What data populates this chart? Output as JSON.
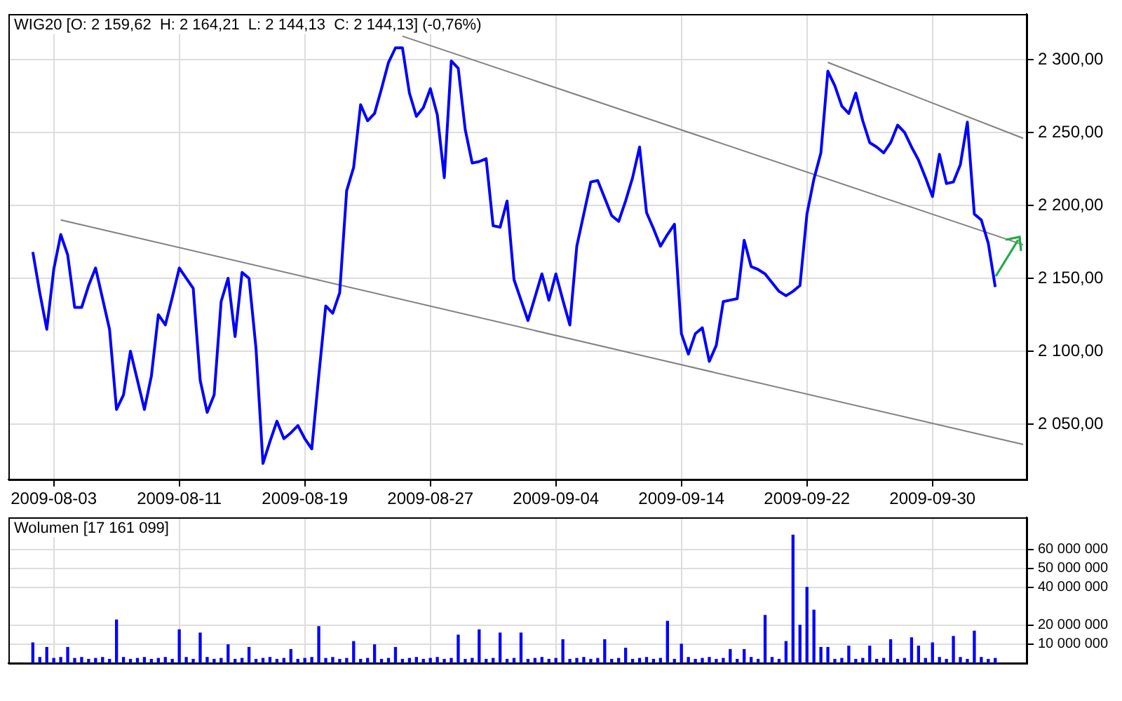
{
  "chart_data": [
    {
      "type": "line",
      "title": "WIG20 [O: 2 159,62  H: 2 164,21  L: 2 144,13  C: 2 144,13] (-0,76%)",
      "categories": [
        null,
        null,
        null,
        null,
        null,
        null,
        "2009-08-03",
        null,
        null,
        null,
        null,
        null,
        null,
        null,
        null,
        null,
        null,
        null,
        null,
        null,
        null,
        null,
        null,
        null,
        "2009-08-11",
        null,
        null,
        null,
        null,
        null,
        null,
        null,
        null,
        null,
        null,
        null,
        null,
        null,
        null,
        null,
        null,
        null,
        "2009-08-19",
        null,
        null,
        null,
        null,
        null,
        null,
        null,
        null,
        null,
        null,
        null,
        null,
        null,
        null,
        null,
        null,
        null,
        "2009-08-27",
        null,
        null,
        null,
        null,
        null,
        null,
        null,
        null,
        null,
        null,
        null,
        null,
        null,
        null,
        null,
        null,
        null,
        "2009-09-04",
        null,
        null,
        null,
        null,
        null,
        null,
        null,
        null,
        null,
        null,
        null,
        null,
        null,
        null,
        null,
        null,
        null,
        "2009-09-14",
        null,
        null,
        null,
        null,
        null,
        null,
        null,
        null,
        null,
        null,
        null,
        null,
        null,
        null,
        null,
        null,
        null,
        "2009-09-22",
        null,
        null,
        null,
        null,
        null,
        null,
        null,
        null,
        null,
        null,
        null,
        null,
        null,
        null,
        null,
        null,
        null,
        "2009-09-30",
        null,
        null,
        null,
        null,
        null,
        null,
        null,
        null,
        null,
        null,
        null,
        null,
        null
      ],
      "ylim": [
        2012,
        2331
      ],
      "yticks": [
        {
          "value": 2050,
          "label": "2 050,00"
        },
        {
          "value": 2100,
          "label": "2 100,00"
        },
        {
          "value": 2150,
          "label": "2 150,00"
        },
        {
          "value": 2200,
          "label": "2 200,00"
        },
        {
          "value": 2250,
          "label": "2 250,00"
        },
        {
          "value": 2300,
          "label": "2 300,00"
        }
      ],
      "grid": true,
      "series": [
        {
          "color": "#0000ff",
          "values": [
            null,
            null,
            null,
            2168,
            2140,
            2115,
            2156,
            2180,
            2166,
            2130,
            2130,
            2145,
            2157,
            2136,
            2115,
            2060,
            2070,
            2100,
            2080,
            2060,
            2083,
            2125,
            2118,
            2137,
            2157,
            2150,
            2143,
            2080,
            2058,
            2070,
            2134,
            2150,
            2110,
            2154,
            2150,
            2102,
            2023,
            2038,
            2052,
            2040,
            2044,
            2049,
            2040,
            2033,
            2083,
            2131,
            2126,
            2140,
            2210,
            2226,
            2269,
            2258,
            2263,
            2280,
            2298,
            2308,
            2308,
            2277,
            2261,
            2267,
            2280,
            2262,
            2219,
            2299,
            2294,
            2252,
            2229,
            2230,
            2232,
            2186,
            2185,
            2203,
            2149,
            2135,
            2121,
            2137,
            2153,
            2135,
            2153,
            2135,
            2118,
            2172,
            2194,
            2216,
            2217,
            2205,
            2193,
            2189,
            2203,
            2219,
            2240,
            2195,
            2184,
            2172,
            2180,
            2187,
            2112,
            2098,
            2112,
            2116,
            2093,
            2104,
            2134,
            2135,
            2136,
            2176,
            2158,
            2156,
            2153,
            2147,
            2141,
            2138,
            2141,
            2145,
            2194,
            2218,
            2236,
            2292,
            2282,
            2268,
            2263,
            2277,
            2258,
            2243,
            2240,
            2236,
            2243,
            2255,
            2250,
            2240,
            2231,
            2219,
            2206,
            2235,
            2215,
            2216,
            2228,
            2257,
            2194,
            2190,
            2174,
            2144,
            null,
            null,
            null,
            null
          ]
        },
        {
          "color": "#808080",
          "values": [
            null,
            null,
            null,
            null,
            null,
            null,
            null,
            2190,
            null,
            null,
            null,
            null,
            null,
            null,
            null,
            null,
            null,
            null,
            null,
            null,
            null,
            null,
            null,
            null,
            null,
            null,
            null,
            null,
            null,
            null,
            null,
            null,
            null,
            null,
            null,
            null,
            null,
            null,
            null,
            null,
            null,
            null,
            null,
            null,
            null,
            null,
            null,
            null,
            null,
            null,
            null,
            null,
            null,
            null,
            null,
            null,
            null,
            null,
            null,
            null,
            null,
            null,
            null,
            null,
            null,
            null,
            null,
            null,
            null,
            null,
            null,
            null,
            null,
            null,
            null,
            null,
            null,
            null,
            null,
            null,
            null,
            null,
            null,
            null,
            null,
            null,
            null,
            null,
            null,
            null,
            null,
            null,
            null,
            null,
            null,
            null,
            null,
            null,
            null,
            null,
            null,
            null,
            null,
            null,
            null,
            null,
            null,
            null,
            null,
            null,
            null,
            null,
            null,
            null,
            null,
            null,
            null,
            null,
            null,
            null,
            null,
            null,
            null,
            null,
            null,
            null,
            null,
            null,
            null,
            null,
            null,
            null,
            null,
            null,
            null,
            null,
            null,
            null,
            null,
            null,
            null,
            null,
            null,
            null,
            null,
            2036
          ]
        },
        {
          "color": "#808080",
          "values": [
            null,
            null,
            null,
            null,
            null,
            null,
            null,
            null,
            null,
            null,
            null,
            null,
            null,
            null,
            null,
            null,
            null,
            null,
            null,
            null,
            null,
            null,
            null,
            null,
            null,
            null,
            null,
            null,
            null,
            null,
            null,
            null,
            null,
            null,
            null,
            null,
            null,
            null,
            null,
            null,
            null,
            null,
            null,
            null,
            null,
            null,
            null,
            null,
            null,
            null,
            null,
            null,
            null,
            null,
            null,
            null,
            2316,
            null,
            null,
            null,
            null,
            null,
            null,
            null,
            null,
            null,
            null,
            null,
            null,
            null,
            null,
            null,
            null,
            null,
            null,
            null,
            null,
            null,
            null,
            null,
            null,
            null,
            null,
            null,
            null,
            null,
            null,
            null,
            null,
            null,
            null,
            null,
            null,
            null,
            null,
            null,
            null,
            null,
            null,
            null,
            null,
            null,
            null,
            null,
            null,
            null,
            null,
            null,
            null,
            null,
            null,
            null,
            null,
            null,
            null,
            null,
            null,
            null,
            null,
            null,
            null,
            null,
            null,
            null,
            null,
            null,
            null,
            null,
            null,
            null,
            null,
            null,
            null,
            null,
            null,
            null,
            null,
            null,
            null,
            null,
            null,
            null,
            null,
            null,
            null,
            2173
          ]
        },
        {
          "color": "#808080",
          "values": [
            null,
            null,
            null,
            null,
            null,
            null,
            null,
            null,
            null,
            null,
            null,
            null,
            null,
            null,
            null,
            null,
            null,
            null,
            null,
            null,
            null,
            null,
            null,
            null,
            null,
            null,
            null,
            null,
            null,
            null,
            null,
            null,
            null,
            null,
            null,
            null,
            null,
            null,
            null,
            null,
            null,
            null,
            null,
            null,
            null,
            null,
            null,
            null,
            null,
            null,
            null,
            null,
            null,
            null,
            null,
            null,
            null,
            null,
            null,
            null,
            null,
            null,
            null,
            null,
            null,
            null,
            null,
            null,
            null,
            null,
            null,
            null,
            null,
            null,
            null,
            null,
            null,
            null,
            null,
            null,
            null,
            null,
            null,
            null,
            null,
            null,
            null,
            null,
            null,
            null,
            null,
            null,
            null,
            null,
            null,
            null,
            null,
            null,
            null,
            null,
            null,
            null,
            null,
            null,
            null,
            null,
            null,
            null,
            null,
            null,
            null,
            null,
            null,
            null,
            null,
            null,
            null,
            2298,
            null,
            null,
            null,
            null,
            null,
            null,
            null,
            null,
            null,
            null,
            null,
            null,
            null,
            null,
            null,
            null,
            null,
            null,
            null,
            null,
            null,
            null,
            null,
            null,
            null,
            null,
            null,
            2246
          ]
        }
      ]
    },
    {
      "type": "bar",
      "title": "Wolumen [17 161 099]",
      "categories": [
        null,
        null,
        null,
        null,
        null,
        null,
        "2009-08-03",
        null,
        null,
        null,
        null,
        null,
        null,
        null,
        null,
        null,
        null,
        null,
        null,
        null,
        null,
        null,
        null,
        null,
        "2009-08-11",
        null,
        null,
        null,
        null,
        null,
        null,
        null,
        null,
        null,
        null,
        null,
        null,
        null,
        null,
        null,
        null,
        null,
        "2009-08-19",
        null,
        null,
        null,
        null,
        null,
        null,
        null,
        null,
        null,
        null,
        null,
        null,
        null,
        null,
        null,
        null,
        null,
        "2009-08-27",
        null,
        null,
        null,
        null,
        null,
        null,
        null,
        null,
        null,
        null,
        null,
        null,
        null,
        null,
        null,
        null,
        null,
        "2009-09-04",
        null,
        null,
        null,
        null,
        null,
        null,
        null,
        null,
        null,
        null,
        null,
        null,
        null,
        null,
        null,
        null,
        null,
        "2009-09-14",
        null,
        null,
        null,
        null,
        null,
        null,
        null,
        null,
        null,
        null,
        null,
        null,
        null,
        null,
        null,
        null,
        null,
        "2009-09-22",
        null,
        null,
        null,
        null,
        null,
        null,
        null,
        null,
        null,
        null,
        null,
        null,
        null,
        null,
        null,
        null,
        null,
        "2009-09-30",
        null,
        null,
        null,
        null,
        null,
        null,
        null,
        null,
        null,
        null,
        null,
        null,
        null
      ],
      "ylim": [
        0,
        77000000
      ],
      "yticks": [
        {
          "value": 10000000,
          "label": "10 000 000"
        },
        {
          "value": 20000000,
          "label": "20 000 000"
        },
        {
          "value": 40000000,
          "label": "40 000 000"
        },
        {
          "value": 50000000,
          "label": "50 000 000"
        },
        {
          "value": 60000000,
          "label": "60 000 000"
        }
      ],
      "grid": true,
      "tick_labels": "y",
      "series": [
        {
          "color": "#0000ff",
          "values": [
            null,
            null,
            null,
            10700000,
            3000000,
            8300000,
            2500000,
            3000000,
            8300000,
            2500000,
            3000000,
            2000000,
            2500000,
            3000000,
            2000000,
            22800000,
            3000000,
            2000000,
            2500000,
            3000000,
            2000000,
            2500000,
            3000000,
            2000000,
            17600000,
            3000000,
            2000000,
            15900000,
            3000000,
            2000000,
            2500000,
            9700000,
            2000000,
            2500000,
            8300000,
            2000000,
            2500000,
            3000000,
            2000000,
            2500000,
            7200000,
            2000000,
            2500000,
            3000000,
            19300000,
            2500000,
            3000000,
            2000000,
            2500000,
            11400000,
            2000000,
            2500000,
            9700000,
            2000000,
            2500000,
            8300000,
            2000000,
            2500000,
            3000000,
            2000000,
            2500000,
            3000000,
            2000000,
            2500000,
            14800000,
            2000000,
            2500000,
            17600000,
            2000000,
            2500000,
            15900000,
            2000000,
            2500000,
            15900000,
            2000000,
            2500000,
            3000000,
            2000000,
            2500000,
            12400000,
            2000000,
            2500000,
            3000000,
            2000000,
            2500000,
            12400000,
            2000000,
            2500000,
            7900000,
            2000000,
            2500000,
            3000000,
            2000000,
            2500000,
            22100000,
            2000000,
            10000000,
            3000000,
            2000000,
            2500000,
            3000000,
            2000000,
            2500000,
            7200000,
            2000000,
            7200000,
            3000000,
            2000000,
            25200000,
            3000000,
            2000000,
            11400000,
            67600000,
            20000000,
            40000000,
            28000000,
            8300000,
            8300000,
            2000000,
            2500000,
            9000000,
            2000000,
            2500000,
            9000000,
            2000000,
            2500000,
            12400000,
            2000000,
            2500000,
            13400000,
            9000000,
            2500000,
            10700000,
            3000000,
            2000000,
            14100000,
            3000000,
            2000000,
            16900000,
            3000000,
            2000000,
            2500000,
            null,
            null,
            null,
            null
          ]
        }
      ]
    }
  ]
}
